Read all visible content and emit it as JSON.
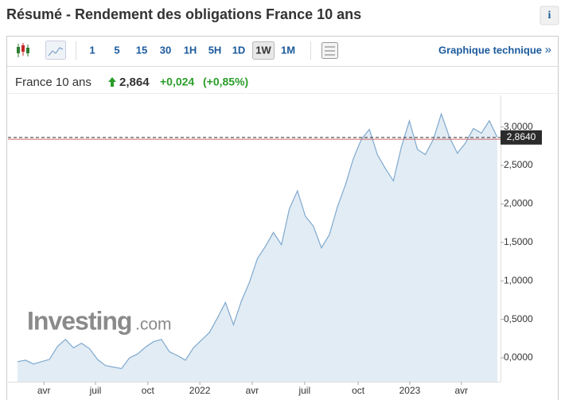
{
  "header": {
    "title": "Résumé - Rendement des obligations France 10 ans",
    "info": "i"
  },
  "toolbar": {
    "intervals": [
      "1",
      "5",
      "15",
      "30",
      "1H",
      "5H",
      "1D",
      "1W",
      "1M"
    ],
    "active_interval": "1W",
    "link": "Graphique technique",
    "link_arrow": "»"
  },
  "quote": {
    "name": "France 10 ans",
    "price": "2,864",
    "change": "+0,024",
    "change_pct": "(+0,85%)"
  },
  "watermark": {
    "brand": "Investing",
    "suffix": ".com"
  },
  "chart_data": {
    "type": "area",
    "color": "#7fa9cf",
    "fill": "#e2ecf4",
    "values": [
      -0.05,
      -0.03,
      -0.08,
      -0.05,
      -0.02,
      0.15,
      0.24,
      0.13,
      0.19,
      0.12,
      -0.02,
      -0.1,
      -0.12,
      -0.14,
      0.0,
      0.05,
      0.14,
      0.21,
      0.24,
      0.08,
      0.03,
      -0.03,
      0.13,
      0.23,
      0.33,
      0.52,
      0.72,
      0.43,
      0.74,
      0.98,
      1.29,
      1.45,
      1.63,
      1.47,
      1.94,
      2.17,
      1.84,
      1.71,
      1.43,
      1.6,
      1.96,
      2.25,
      2.59,
      2.84,
      2.97,
      2.64,
      2.46,
      2.3,
      2.74,
      3.08,
      2.71,
      2.64,
      2.84,
      3.17,
      2.87,
      2.66,
      2.79,
      2.98,
      2.92,
      3.08,
      2.864
    ],
    "xlim": [
      0,
      60
    ],
    "xticks": [
      {
        "value": 3.3,
        "label": "avr"
      },
      {
        "value": 9.75,
        "label": "juil"
      },
      {
        "value": 16.3,
        "label": "oct"
      },
      {
        "value": 22.8,
        "label": "2022"
      },
      {
        "value": 29.35,
        "label": "avr"
      },
      {
        "value": 35.9,
        "label": "juil"
      },
      {
        "value": 42.6,
        "label": "oct"
      },
      {
        "value": 49.05,
        "label": "2023"
      },
      {
        "value": 55.5,
        "label": "avr"
      }
    ],
    "ylim": [
      -0.31,
      3.41
    ],
    "yticks": [
      {
        "value": 0,
        "label": "0,0000"
      },
      {
        "value": 0.5,
        "label": "0,5000"
      },
      {
        "value": 1,
        "label": "1,0000"
      },
      {
        "value": 1.5,
        "label": "1,5000"
      },
      {
        "value": 2,
        "label": "2,0000"
      },
      {
        "value": 2.5,
        "label": "2,5000"
      },
      {
        "value": 3,
        "label": "3,0000"
      }
    ],
    "last_value": {
      "value": 2.864,
      "label": "2,8640"
    },
    "previous_close": 2.84
  }
}
